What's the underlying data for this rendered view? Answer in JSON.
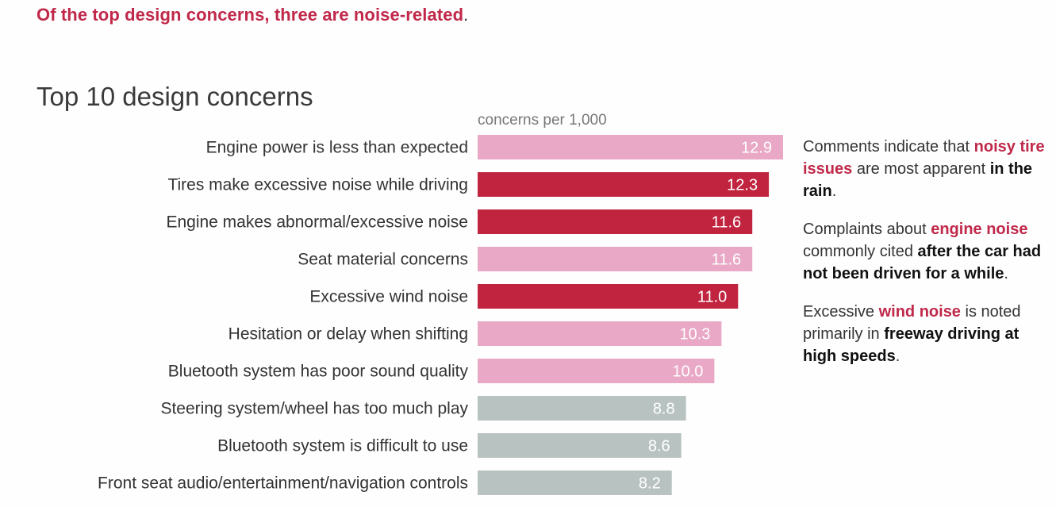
{
  "headline": {
    "text": "Of the top design concerns, three are noise-related",
    "period": "."
  },
  "colors": {
    "accent": "#c0284a",
    "highlight_bar": "#c1243f",
    "other_bar": "#e8a8c6",
    "neutral_bar": "#b8c3c1",
    "label_text": "#333333"
  },
  "chart_data": {
    "type": "bar",
    "orientation": "horizontal",
    "title": "Top 10 design concerns",
    "units_label": "concerns per 1,000",
    "xlim": [
      0,
      12.9
    ],
    "grid": false,
    "legend": "none",
    "categories": [
      "Engine power is less than expected",
      "Tires make excessive noise while driving",
      "Engine makes abnormal/excessive noise",
      "Seat material concerns",
      "Excessive wind noise",
      "Hesitation or delay when shifting",
      "Bluetooth system has poor sound quality",
      "Steering system/wheel has too much play",
      "Bluetooth system is difficult to use",
      "Front seat audio/entertainment/navigation controls"
    ],
    "values": [
      12.9,
      12.3,
      11.6,
      11.6,
      11.0,
      10.3,
      10.0,
      8.8,
      8.6,
      8.2
    ],
    "value_labels": [
      "12.9",
      "12.3",
      "11.6",
      "11.6",
      "11.0",
      "10.3",
      "10.0",
      "8.8",
      "8.6",
      "8.2"
    ],
    "bar_colors": [
      "#e8a8c6",
      "#c1243f",
      "#c1243f",
      "#e8a8c6",
      "#c1243f",
      "#e8a8c6",
      "#e8a8c6",
      "#b8c3c1",
      "#b8c3c1",
      "#b8c3c1"
    ]
  },
  "annotations": [
    {
      "parts": [
        {
          "text": "Comments indicate that ",
          "style": "plain"
        },
        {
          "text": "noisy tire issues",
          "style": "highlight"
        },
        {
          "text": " are most apparent ",
          "style": "plain"
        },
        {
          "text": "in the rain",
          "style": "bold"
        },
        {
          "text": ".",
          "style": "plain"
        }
      ]
    },
    {
      "parts": [
        {
          "text": "Complaints about ",
          "style": "plain"
        },
        {
          "text": "engine noise",
          "style": "highlight"
        },
        {
          "text": " commonly cited ",
          "style": "plain"
        },
        {
          "text": "after the car had not been driven for a while",
          "style": "bold"
        },
        {
          "text": ".",
          "style": "plain"
        }
      ]
    },
    {
      "parts": [
        {
          "text": "Excessive ",
          "style": "plain"
        },
        {
          "text": "wind noise",
          "style": "highlight"
        },
        {
          "text": " is noted primarily in ",
          "style": "plain"
        },
        {
          "text": "freeway driving at high speeds",
          "style": "bold"
        },
        {
          "text": ".",
          "style": "plain"
        }
      ]
    }
  ]
}
